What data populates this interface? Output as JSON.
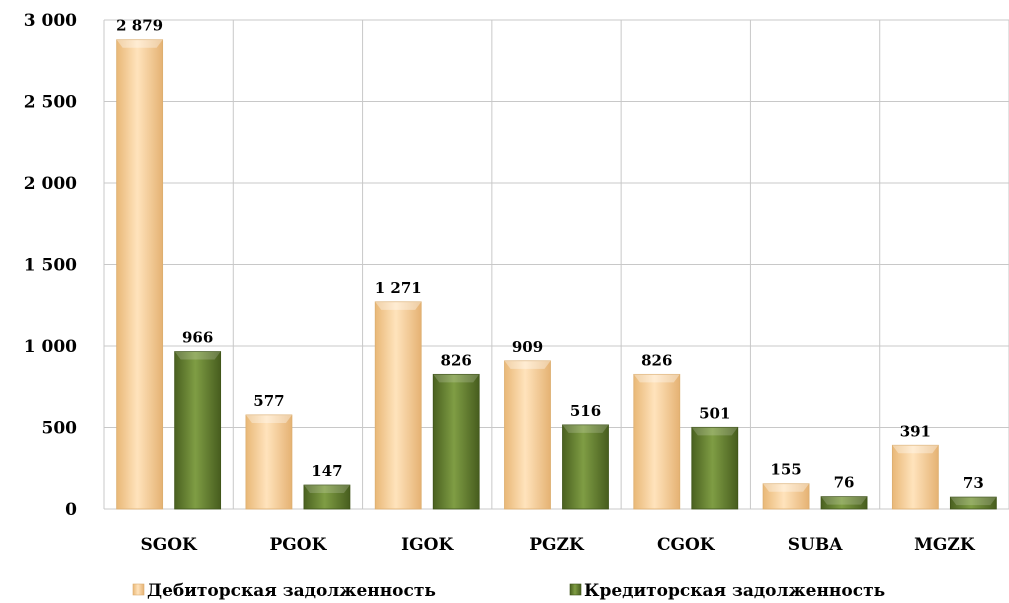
{
  "chart_data": {
    "type": "bar",
    "categories": [
      "SGOK",
      "PGOK",
      "IGOK",
      "PGZK",
      "CGOK",
      "SUBA",
      "MGZK"
    ],
    "series": [
      {
        "name": "Дебиторская задолженность",
        "values": [
          2879,
          577,
          1271,
          909,
          826,
          155,
          391
        ],
        "labels": [
          "2 879",
          "577",
          "1 271",
          "909",
          "826",
          "155",
          "391"
        ],
        "color": "#f6cf98"
      },
      {
        "name": "Кредиторская задолженность",
        "values": [
          966,
          147,
          826,
          516,
          501,
          76,
          73
        ],
        "labels": [
          "966",
          "147",
          "826",
          "516",
          "501",
          "76",
          "73"
        ],
        "color": "#5e7a2a"
      }
    ],
    "yticks": [
      0,
      500,
      1000,
      1500,
      2000,
      2500,
      3000
    ],
    "ytick_labels": [
      "0",
      "500",
      "1 000",
      "1 500",
      "2 000",
      "2 500",
      "3 000"
    ],
    "ylim": [
      0,
      3000
    ],
    "grid": true,
    "legend_position": "bottom"
  }
}
